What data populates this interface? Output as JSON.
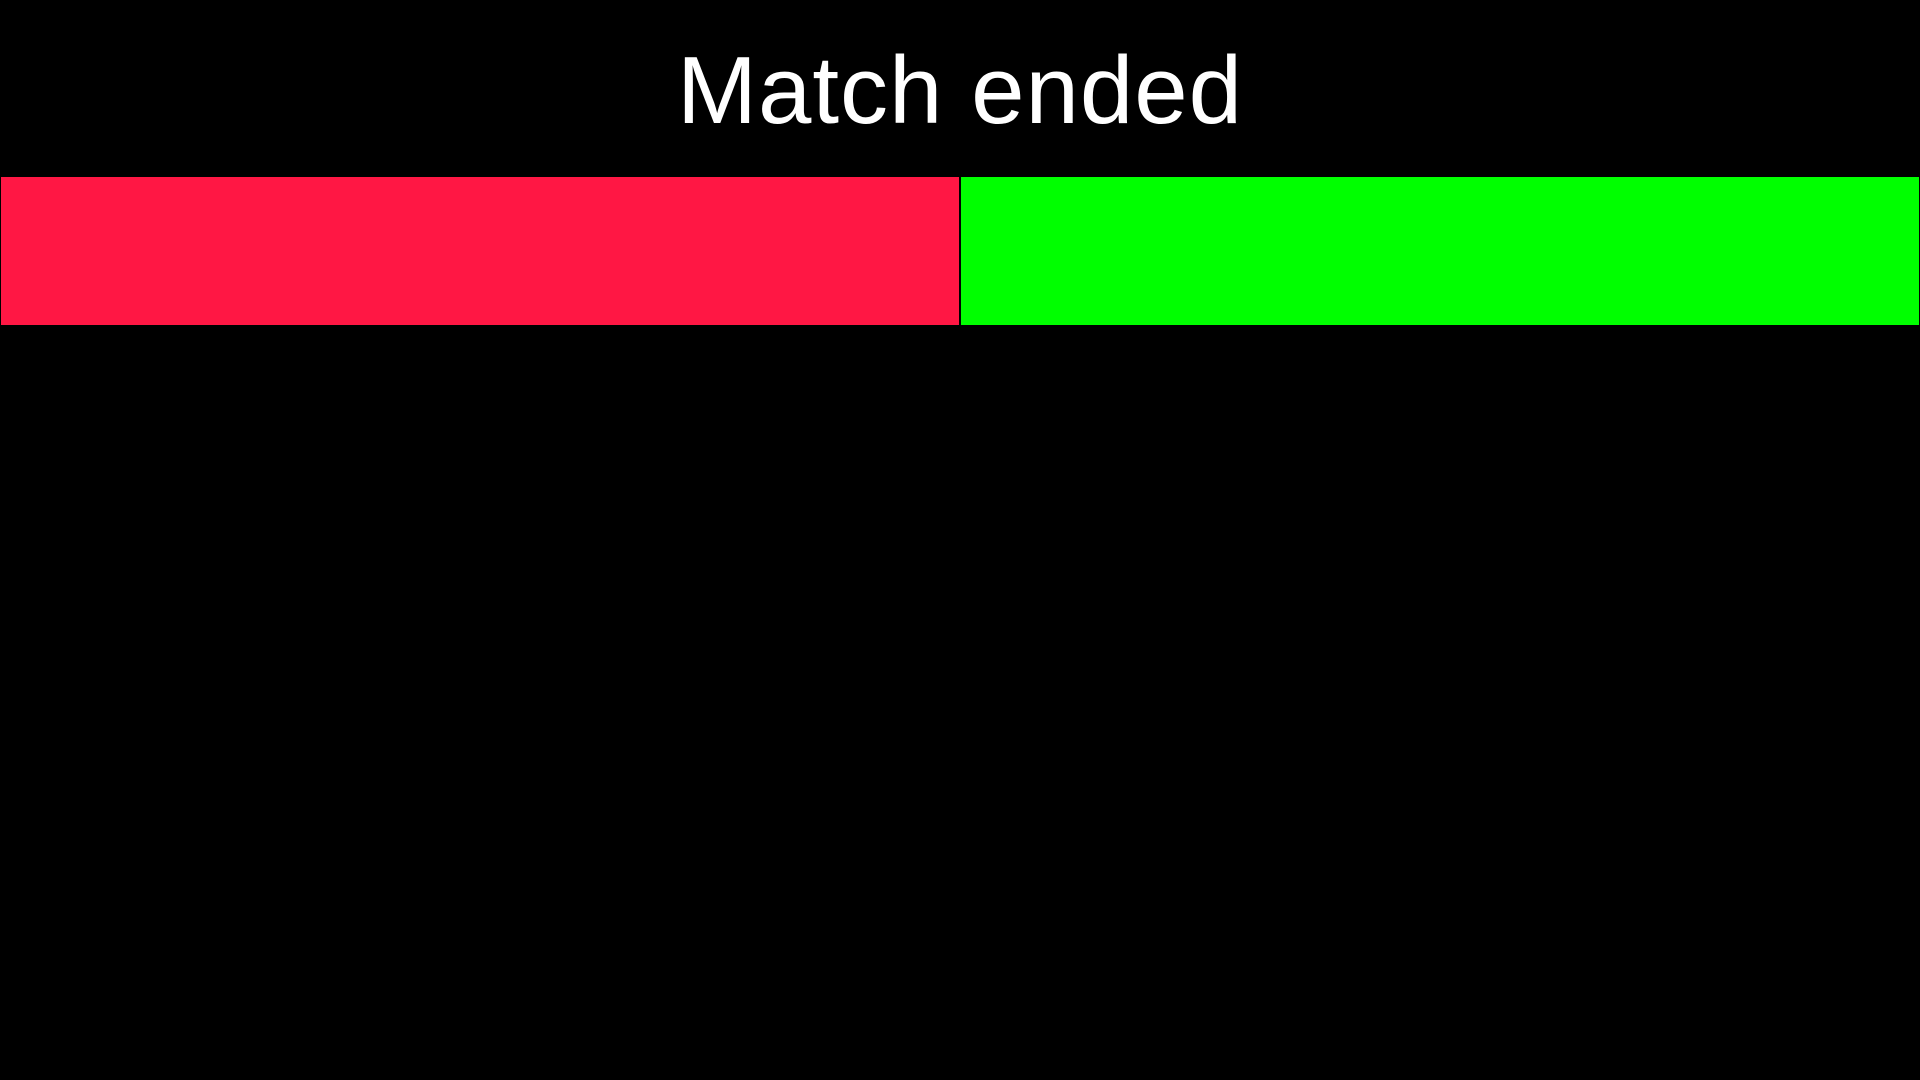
{
  "screen": {
    "title": "Match ended",
    "background_color": "#000000",
    "title_color": "#ffffff"
  },
  "teams": [
    {
      "color": "#ff1744"
    },
    {
      "color": "#00ff00"
    }
  ]
}
